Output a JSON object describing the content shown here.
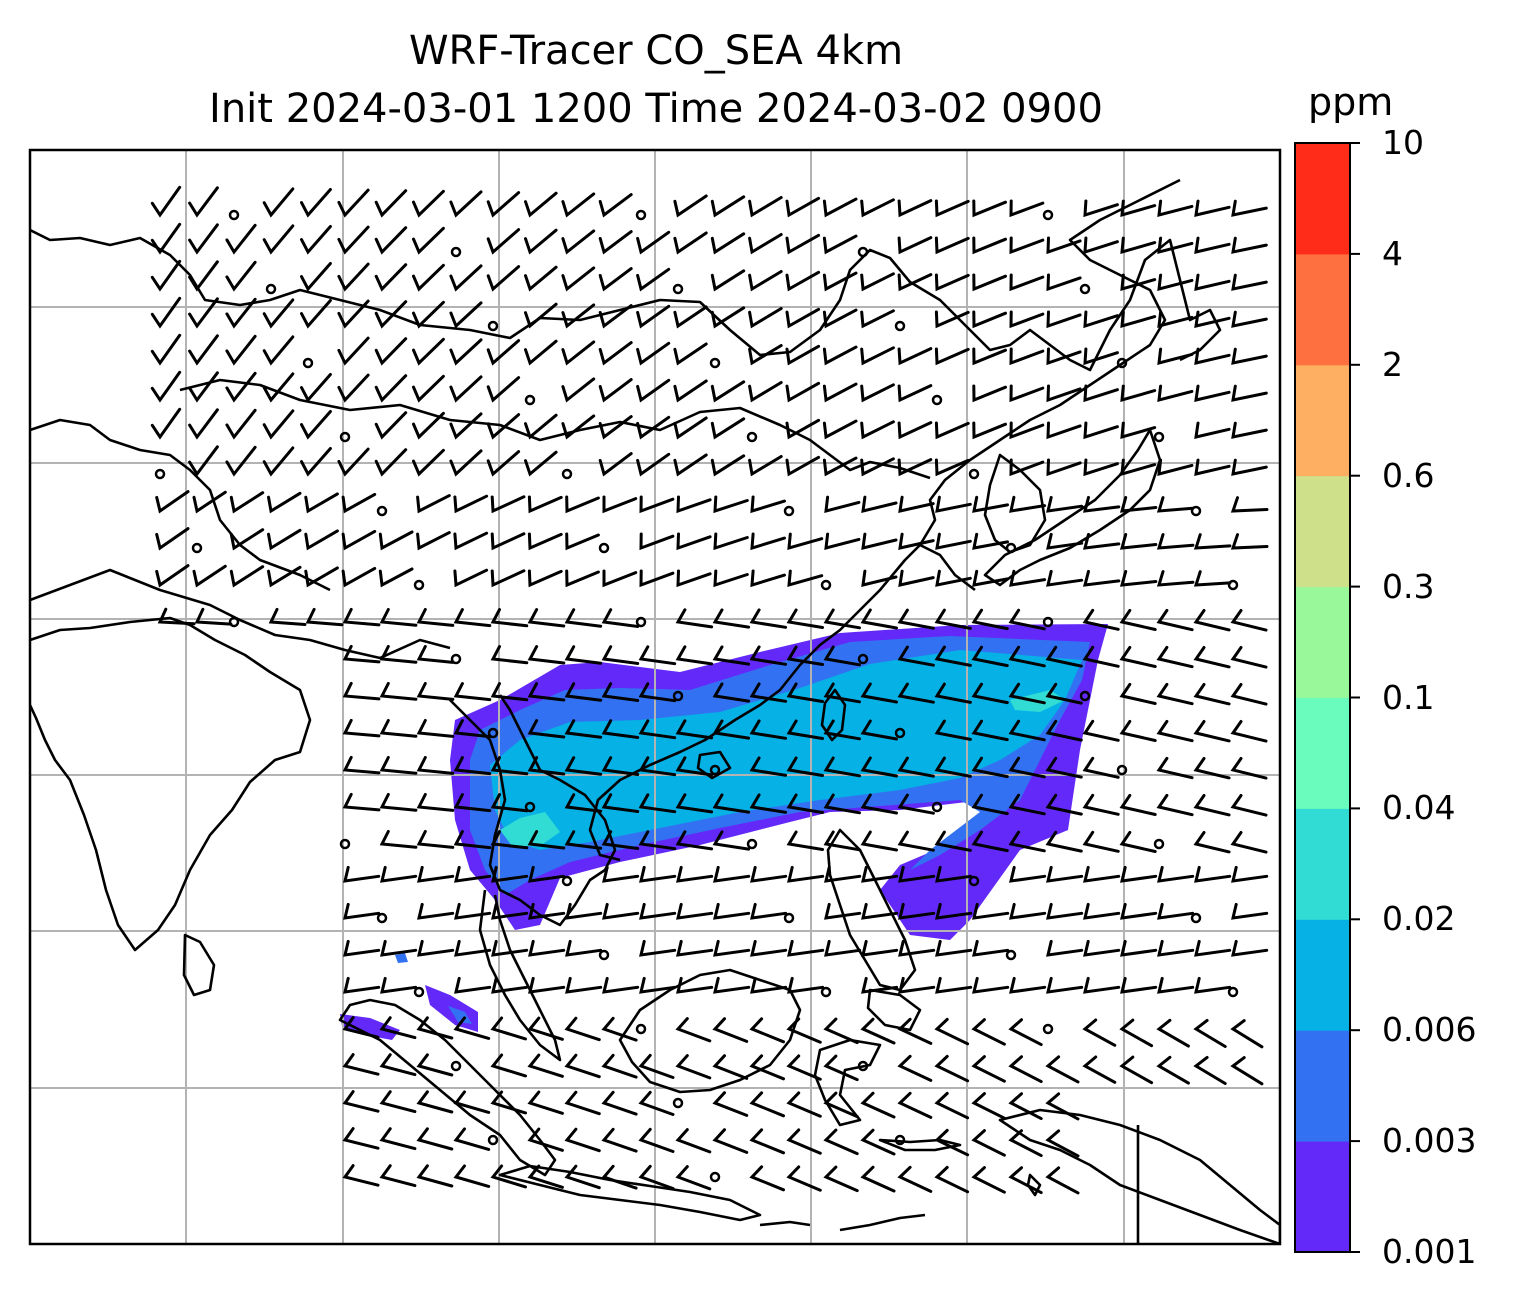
{
  "title": {
    "line1": "WRF-Tracer CO_SEA 4km",
    "line2": "Init 2024-03-01 1200 Time 2024-03-02 0900"
  },
  "colorbar": {
    "unit": "ppm",
    "ticks": [
      "0.001",
      "0.003",
      "0.006",
      "0.02",
      "0.04",
      "0.1",
      "0.3",
      "0.6",
      "2",
      "4",
      "10"
    ],
    "colors": [
      "#6329f8",
      "#3272f2",
      "#06b1e6",
      "#31dcd4",
      "#6afcbd",
      "#99f99a",
      "#cfe08a",
      "#feaf61",
      "#fe7040",
      "#fe2c18"
    ]
  },
  "map": {
    "gridlines": true,
    "features": [
      "coastlines",
      "country-borders",
      "wind-barbs",
      "co-tracer-concentration"
    ]
  }
}
